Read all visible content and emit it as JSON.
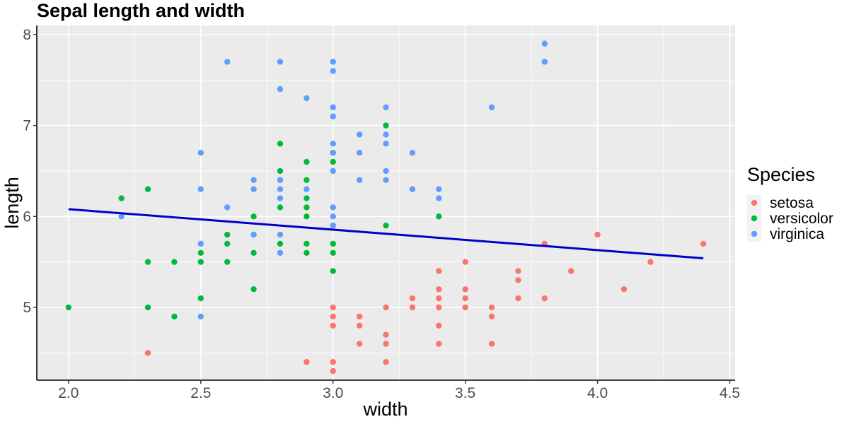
{
  "colors": {
    "panel_bg": "#ebebeb",
    "grid": "#ffffff",
    "axis": "#000000",
    "setosa": "#F8766D",
    "versicolor": "#00BA38",
    "virginica": "#619CFF",
    "trend": "#0000CD"
  },
  "chart_data": {
    "type": "scatter",
    "title": "Sepal length and width",
    "xlabel": "width",
    "ylabel": "length",
    "xlim": [
      1.88,
      4.52
    ],
    "ylim": [
      4.2,
      8.1
    ],
    "x_ticks": [
      2.0,
      2.5,
      3.0,
      3.5,
      4.0,
      4.5
    ],
    "x_tick_labels": [
      "2.0",
      "2.5",
      "3.0",
      "3.5",
      "4.0",
      "4.5"
    ],
    "y_ticks": [
      5,
      6,
      7,
      8
    ],
    "y_tick_labels": [
      "5",
      "6",
      "7",
      "8"
    ],
    "grid": true,
    "legend": {
      "title": "Species",
      "position": "right"
    },
    "series": [
      {
        "name": "setosa",
        "color": "#F8766D",
        "points": [
          [
            2.3,
            4.5
          ],
          [
            2.9,
            4.4
          ],
          [
            3.0,
            4.4
          ],
          [
            3.0,
            4.3
          ],
          [
            3.0,
            4.8
          ],
          [
            3.0,
            4.9
          ],
          [
            3.0,
            5.0
          ],
          [
            3.1,
            4.9
          ],
          [
            3.1,
            4.8
          ],
          [
            3.1,
            4.6
          ],
          [
            3.2,
            4.4
          ],
          [
            3.2,
            4.6
          ],
          [
            3.2,
            4.7
          ],
          [
            3.2,
            5.0
          ],
          [
            3.3,
            5.1
          ],
          [
            3.3,
            5.0
          ],
          [
            3.4,
            4.6
          ],
          [
            3.4,
            4.8
          ],
          [
            3.4,
            5.0
          ],
          [
            3.4,
            5.1
          ],
          [
            3.4,
            5.2
          ],
          [
            3.4,
            5.4
          ],
          [
            3.5,
            5.0
          ],
          [
            3.5,
            5.1
          ],
          [
            3.5,
            5.2
          ],
          [
            3.5,
            5.5
          ],
          [
            3.6,
            4.6
          ],
          [
            3.6,
            4.9
          ],
          [
            3.6,
            5.0
          ],
          [
            3.7,
            5.1
          ],
          [
            3.7,
            5.3
          ],
          [
            3.7,
            5.4
          ],
          [
            3.8,
            5.1
          ],
          [
            3.8,
            5.7
          ],
          [
            3.9,
            5.4
          ],
          [
            4.0,
            5.8
          ],
          [
            4.1,
            5.2
          ],
          [
            4.2,
            5.5
          ],
          [
            4.4,
            5.7
          ]
        ]
      },
      {
        "name": "versicolor",
        "color": "#00BA38",
        "points": [
          [
            2.0,
            5.0
          ],
          [
            2.2,
            6.2
          ],
          [
            2.3,
            6.3
          ],
          [
            2.3,
            5.5
          ],
          [
            2.3,
            5.0
          ],
          [
            2.4,
            5.5
          ],
          [
            2.4,
            4.9
          ],
          [
            2.5,
            5.6
          ],
          [
            2.5,
            5.5
          ],
          [
            2.5,
            5.1
          ],
          [
            2.6,
            5.8
          ],
          [
            2.6,
            5.7
          ],
          [
            2.6,
            5.5
          ],
          [
            2.7,
            6.0
          ],
          [
            2.7,
            5.8
          ],
          [
            2.7,
            5.6
          ],
          [
            2.7,
            5.2
          ],
          [
            2.8,
            6.8
          ],
          [
            2.8,
            6.5
          ],
          [
            2.8,
            6.1
          ],
          [
            2.8,
            5.7
          ],
          [
            2.9,
            6.6
          ],
          [
            2.9,
            6.4
          ],
          [
            2.9,
            6.2
          ],
          [
            2.9,
            6.1
          ],
          [
            2.9,
            6.0
          ],
          [
            2.9,
            5.7
          ],
          [
            2.9,
            5.6
          ],
          [
            3.0,
            6.6
          ],
          [
            3.0,
            6.7
          ],
          [
            3.0,
            5.9
          ],
          [
            3.0,
            5.7
          ],
          [
            3.0,
            5.6
          ],
          [
            3.0,
            5.4
          ],
          [
            3.2,
            7.0
          ],
          [
            3.2,
            5.9
          ],
          [
            3.4,
            6.0
          ]
        ]
      },
      {
        "name": "virginica",
        "color": "#619CFF",
        "points": [
          [
            2.2,
            6.0
          ],
          [
            2.5,
            6.7
          ],
          [
            2.5,
            6.3
          ],
          [
            2.5,
            5.7
          ],
          [
            2.5,
            4.9
          ],
          [
            2.6,
            7.7
          ],
          [
            2.6,
            6.1
          ],
          [
            2.7,
            6.4
          ],
          [
            2.7,
            6.3
          ],
          [
            2.7,
            5.8
          ],
          [
            2.8,
            7.7
          ],
          [
            2.8,
            7.4
          ],
          [
            2.8,
            6.4
          ],
          [
            2.8,
            6.3
          ],
          [
            2.8,
            6.2
          ],
          [
            2.8,
            5.8
          ],
          [
            2.8,
            5.6
          ],
          [
            2.9,
            7.3
          ],
          [
            2.9,
            6.3
          ],
          [
            3.0,
            7.7
          ],
          [
            3.0,
            7.6
          ],
          [
            3.0,
            7.2
          ],
          [
            3.0,
            7.1
          ],
          [
            3.0,
            6.8
          ],
          [
            3.0,
            6.7
          ],
          [
            3.0,
            6.5
          ],
          [
            3.0,
            6.1
          ],
          [
            3.0,
            6.0
          ],
          [
            3.0,
            5.9
          ],
          [
            3.1,
            6.9
          ],
          [
            3.1,
            6.7
          ],
          [
            3.1,
            6.4
          ],
          [
            3.2,
            7.2
          ],
          [
            3.2,
            6.9
          ],
          [
            3.2,
            6.8
          ],
          [
            3.2,
            6.5
          ],
          [
            3.2,
            6.4
          ],
          [
            3.3,
            6.7
          ],
          [
            3.3,
            6.3
          ],
          [
            3.4,
            6.3
          ],
          [
            3.4,
            6.2
          ],
          [
            3.6,
            7.2
          ],
          [
            3.8,
            7.9
          ],
          [
            3.8,
            7.7
          ]
        ]
      }
    ],
    "trend_line": {
      "color": "#0000CD",
      "from": [
        2.0,
        6.08
      ],
      "to": [
        4.4,
        5.54
      ]
    }
  }
}
